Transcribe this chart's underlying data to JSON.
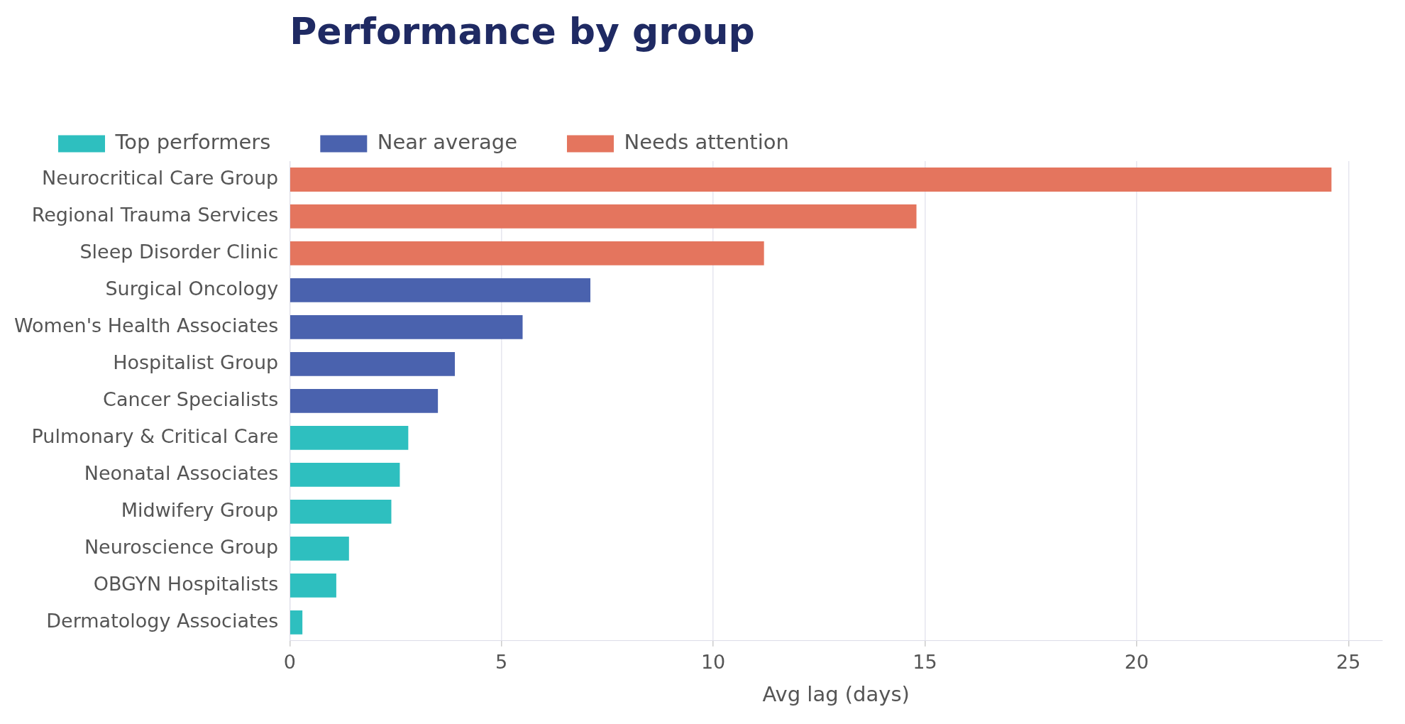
{
  "chart_data": {
    "type": "bar",
    "orientation": "horizontal",
    "title": "Performance by group",
    "xlabel": "Avg lag (days)",
    "categories": [
      "Neurocritical Care Group",
      "Regional Trauma Services",
      "Sleep Disorder Clinic",
      "Surgical Oncology",
      "Women's Health Associates",
      "Hospitalist Group",
      "Cancer Specialists",
      "Pulmonary & Critical Care",
      "Neonatal Associates",
      "Midwifery Group",
      "Neuroscience Group",
      "OBGYN Hospitalists",
      "Dermatology Associates"
    ],
    "series": [
      {
        "name": "Top performers",
        "color": "#2ebfbf",
        "values": [
          null,
          null,
          null,
          null,
          null,
          null,
          null,
          2.8,
          2.6,
          2.4,
          1.4,
          1.1,
          0.3
        ]
      },
      {
        "name": "Near average",
        "color": "#4a62ae",
        "values": [
          null,
          null,
          null,
          7.1,
          5.5,
          3.9,
          3.5,
          null,
          null,
          null,
          null,
          null,
          null
        ]
      },
      {
        "name": "Needs attention",
        "color": "#e4755e",
        "values": [
          24.6,
          14.8,
          11.2,
          null,
          null,
          null,
          null,
          null,
          null,
          null,
          null,
          null,
          null
        ]
      }
    ],
    "xlim": [
      0,
      25.8
    ],
    "xticks": [
      0,
      5,
      10,
      15,
      20,
      25
    ],
    "grid": "x",
    "legend": "top"
  }
}
